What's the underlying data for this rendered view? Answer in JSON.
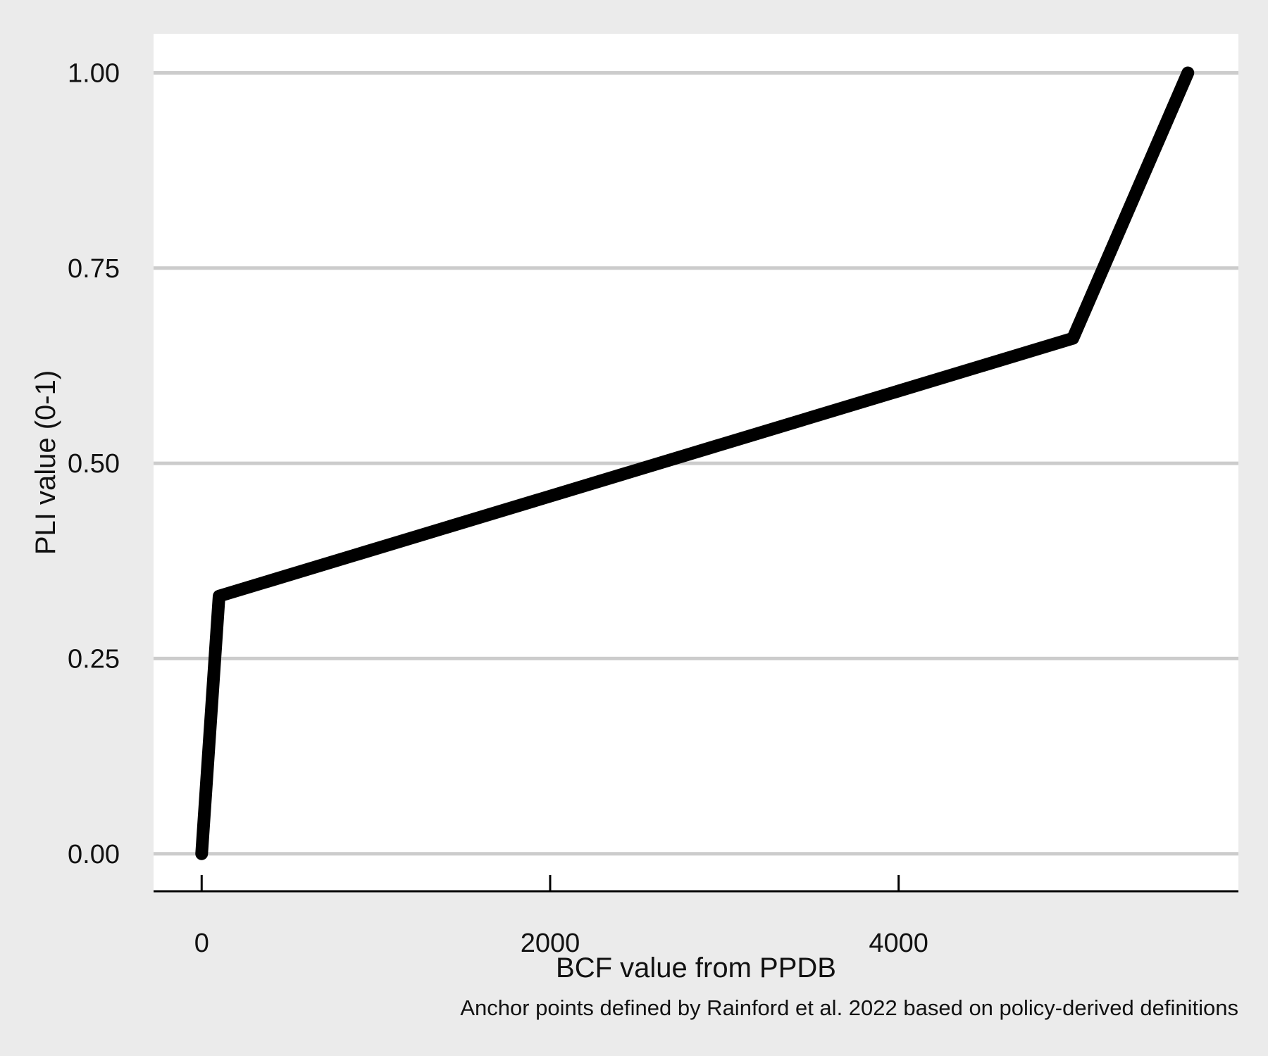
{
  "chart_data": {
    "type": "line",
    "title": "",
    "xlabel": "BCF value from PPDB",
    "ylabel": "PLI value (0-1)",
    "caption": "Anchor points defined by Rainford et al. 2022 based on policy-derived definitions",
    "xlim": [
      -276,
      5950
    ],
    "ylim": [
      -0.048,
      1.05
    ],
    "x_ticks": [
      0,
      2000,
      4000
    ],
    "x_tick_labels": [
      "0",
      "2000",
      "4000"
    ],
    "y_ticks": [
      0,
      0.25,
      0.5,
      0.75,
      1
    ],
    "y_tick_labels": [
      "0.00",
      "0.25",
      "0.50",
      "0.75",
      "1.00"
    ],
    "grid": "horizontal major",
    "legend": "none",
    "series": [
      {
        "x": [
          0,
          100,
          5000,
          5660
        ],
        "y": [
          0,
          0.33,
          0.66,
          1.0
        ],
        "color": "#000000"
      }
    ],
    "colors": {
      "background": "#ebebeb",
      "panel": "#ffffff",
      "grid": "#cccccc",
      "line": "#000000"
    }
  }
}
